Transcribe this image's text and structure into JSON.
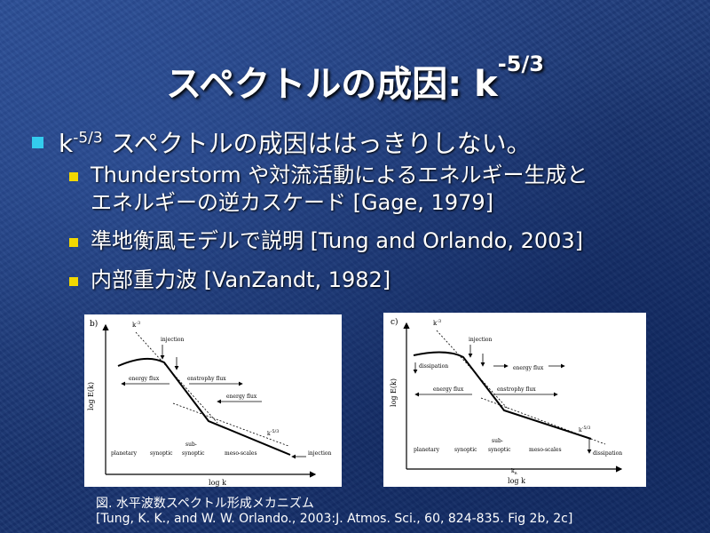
{
  "slide": {
    "title_main": "スペクトルの成因: k",
    "title_exp": "-5/3",
    "bullet1_k": "k",
    "bullet1_exp": "-5/3",
    "bullet1_text": " スペクトルの成因ははっきりしない。",
    "sub_bullets": [
      {
        "lines": [
          "Thunderstorm や対流活動によるエネルギー生成と",
          "エネルギーの逆カスケード [Gage, 1979]"
        ]
      },
      {
        "lines": [
          "準地衡風モデルで説明 [Tung and Orlando, 2003]"
        ]
      },
      {
        "lines": [
          "内部重力波 [VanZandt, 1982]"
        ]
      }
    ],
    "caption_line1": "図. 水平波数スペクトル形成メカニズム",
    "caption_line2": "[Tung, K. K., and W. W. Orlando., 2003:J. Atmos. Sci., 60, 824-835. Fig 2b, 2c]"
  },
  "figure_b": {
    "panel": "b)",
    "k3": "k",
    "k3_exp": "-3",
    "k53": "k",
    "k53_exp": "-5/3",
    "ylabel": "log E(k)",
    "xlabel": "log k",
    "injection_top": "injection",
    "energy_flux_left": "energy flux",
    "enstrophy_flux": "enstrophy flux",
    "energy_flux_right": "energy flux",
    "planetary": "planetary",
    "synoptic": "synoptic",
    "sub": "sub-",
    "synoptic2": "synoptic",
    "meso": "meso-scales",
    "injection_right": "injection"
  },
  "figure_c": {
    "panel": "c)",
    "k3": "k",
    "k3_exp": "-3",
    "k53": "k",
    "k53_exp": "-5/3",
    "ylabel": "log E(k)",
    "xlabel": "log k",
    "injection_top": "injection",
    "dissipation_left": "dissipation",
    "energy_flux_top": "energy flux",
    "energy_flux_left": "energy flux",
    "enstrophy_flux": "enstrophy flux",
    "planetary": "planetary",
    "synoptic": "synoptic",
    "sub": "sub-",
    "synoptic2": "synoptic",
    "meso": "meso-scales",
    "kr": "k",
    "kr_sub": "R",
    "dissipation_right": "dissipation"
  }
}
